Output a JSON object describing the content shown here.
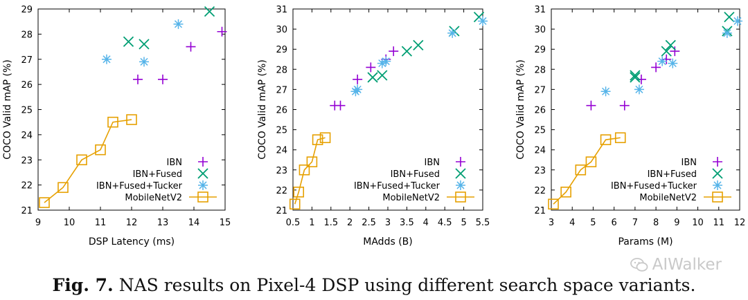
{
  "caption": {
    "label": "Fig. 7.",
    "text": "NAS results on Pixel-4 DSP using different search space variants."
  },
  "watermark": {
    "text": "AIWalker",
    "icon": "wechat-icon"
  },
  "colors": {
    "IBN": "#9400d3",
    "IBN+Fused": "#009e73",
    "IBN+Fused+Tucker": "#56b4e9",
    "MobileNetV2": "#e6a000"
  },
  "chart_data": [
    {
      "type": "scatter",
      "xlabel": "DSP Latency (ms)",
      "ylabel": "COCO Valid mAP (%)",
      "xlim": [
        9,
        15
      ],
      "ylim": [
        21,
        29
      ],
      "xticks": [
        "9",
        "10",
        "11",
        "12",
        "13",
        "14",
        "15"
      ],
      "yticks": [
        "21",
        "22",
        "23",
        "24",
        "25",
        "26",
        "27",
        "28",
        "29"
      ],
      "legend_position": "bottom-right",
      "series": [
        {
          "name": "IBN",
          "marker": "plus",
          "x": [
            12.2,
            13.0,
            13.9,
            14.9
          ],
          "y": [
            26.2,
            26.2,
            27.5,
            28.1
          ]
        },
        {
          "name": "IBN+Fused",
          "marker": "cross",
          "x": [
            11.9,
            12.4,
            14.5
          ],
          "y": [
            27.7,
            27.6,
            28.9
          ]
        },
        {
          "name": "IBN+Fused+Tucker",
          "marker": "star",
          "x": [
            11.2,
            12.4,
            13.5
          ],
          "y": [
            27.0,
            26.9,
            28.4
          ]
        },
        {
          "name": "MobileNetV2",
          "marker": "square-line",
          "x": [
            9.2,
            9.8,
            10.4,
            11.0,
            11.4,
            12.0
          ],
          "y": [
            21.3,
            21.9,
            23.0,
            23.4,
            24.5,
            24.6
          ]
        }
      ]
    },
    {
      "type": "scatter",
      "xlabel": "MAdds (B)",
      "ylabel": "COCO Valid mAP (%)",
      "xlim": [
        0.5,
        5.5
      ],
      "ylim": [
        21,
        31
      ],
      "xticks": [
        "0.5",
        "1",
        "1.5",
        "2",
        "2.5",
        "3",
        "3.5",
        "4",
        "4.5",
        "5",
        "5.5"
      ],
      "yticks": [
        "21",
        "22",
        "23",
        "24",
        "25",
        "26",
        "27",
        "28",
        "29",
        "30",
        "31"
      ],
      "legend_position": "bottom-right",
      "series": [
        {
          "name": "IBN",
          "marker": "plus",
          "x": [
            1.6,
            1.75,
            2.2,
            2.55,
            2.95,
            3.15
          ],
          "y": [
            26.2,
            26.2,
            27.5,
            28.1,
            28.5,
            28.9
          ]
        },
        {
          "name": "IBN+Fused",
          "marker": "cross",
          "x": [
            2.6,
            2.85,
            3.5,
            3.8,
            4.75,
            5.4
          ],
          "y": [
            27.6,
            27.7,
            28.9,
            29.2,
            29.9,
            30.6
          ]
        },
        {
          "name": "IBN+Fused+Tucker",
          "marker": "star",
          "x": [
            2.15,
            2.2,
            2.85,
            2.95,
            4.7,
            5.5
          ],
          "y": [
            26.9,
            27.0,
            28.3,
            28.4,
            29.8,
            30.4
          ]
        },
        {
          "name": "MobileNetV2",
          "marker": "square-line",
          "x": [
            0.55,
            0.65,
            0.8,
            1.0,
            1.15,
            1.35
          ],
          "y": [
            21.3,
            21.9,
            23.0,
            23.4,
            24.5,
            24.6
          ]
        }
      ]
    },
    {
      "type": "scatter",
      "xlabel": "Params (M)",
      "ylabel": "COCO Valid mAP (%)",
      "xlim": [
        3,
        12
      ],
      "ylim": [
        21,
        31
      ],
      "xticks": [
        "3",
        "4",
        "5",
        "6",
        "7",
        "8",
        "9",
        "10",
        "11",
        "12"
      ],
      "yticks": [
        "21",
        "22",
        "23",
        "24",
        "25",
        "26",
        "27",
        "28",
        "29",
        "30",
        "31"
      ],
      "legend_position": "bottom-right",
      "series": [
        {
          "name": "IBN",
          "marker": "plus",
          "x": [
            4.9,
            6.5,
            7.3,
            8.0,
            8.5,
            8.9
          ],
          "y": [
            26.2,
            26.2,
            27.5,
            28.1,
            28.5,
            28.9
          ]
        },
        {
          "name": "IBN+Fused",
          "marker": "cross",
          "x": [
            7.0,
            7.0,
            8.5,
            8.7,
            11.4,
            11.5
          ],
          "y": [
            27.6,
            27.7,
            28.9,
            29.2,
            29.9,
            30.6
          ]
        },
        {
          "name": "IBN+Fused+Tucker",
          "marker": "star",
          "x": [
            5.6,
            7.2,
            8.3,
            8.8,
            11.4,
            11.9
          ],
          "y": [
            26.9,
            27.0,
            28.4,
            28.3,
            29.8,
            30.4
          ]
        },
        {
          "name": "MobileNetV2",
          "marker": "square-line",
          "x": [
            3.1,
            3.7,
            4.4,
            4.9,
            5.6,
            6.3
          ],
          "y": [
            21.3,
            21.9,
            23.0,
            23.4,
            24.5,
            24.6
          ]
        }
      ]
    }
  ]
}
